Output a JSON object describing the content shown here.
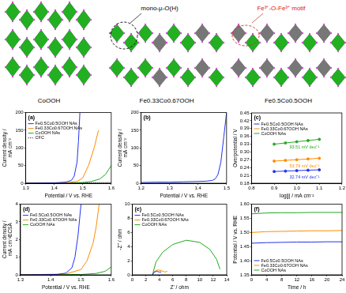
{
  "figure": {
    "structures": [
      {
        "label": "CoOOH"
      },
      {
        "label": "Fe0.33Co0.67OOH",
        "annotation": {
          "text": "mono-μ-O(H)",
          "color": "#000000"
        }
      },
      {
        "label": "Fe0.5Co0.5OOH",
        "annotation": {
          "text": "Fe³⁺-O-Fe³⁺ motif",
          "color": "#e02020"
        }
      }
    ]
  },
  "chart_data": [
    {
      "type": "line",
      "title": "(a)",
      "x_label": "Potential / V vs. RHE",
      "y_label": "Current density / mA cm⁻²",
      "xlim": [
        1.3,
        1.6
      ],
      "xticks": [
        1.3,
        1.4,
        1.5,
        1.6
      ],
      "ylim": [
        0,
        200
      ],
      "yticks": [
        0,
        50,
        100,
        150,
        200
      ],
      "grid": false,
      "legend": "upper left",
      "series": [
        {
          "name": "Fe0.5Co0.5OOH NAs",
          "color": "#2233ee",
          "x": [
            1.3,
            1.4,
            1.44,
            1.46,
            1.47,
            1.48,
            1.485,
            1.49
          ],
          "values": [
            0,
            1,
            3,
            8,
            20,
            60,
            120,
            200
          ]
        },
        {
          "name": "Fe0.33Co0.67OOH NAs",
          "color": "#ff8c00",
          "x": [
            1.3,
            1.4,
            1.45,
            1.48,
            1.5,
            1.52,
            1.54,
            1.555
          ],
          "values": [
            0,
            1,
            2,
            5,
            15,
            50,
            100,
            150
          ]
        },
        {
          "name": "CoOOH NAs",
          "color": "#22aa22",
          "x": [
            1.3,
            1.45,
            1.5,
            1.53,
            1.56,
            1.58,
            1.6
          ],
          "values": [
            0,
            1,
            2,
            5,
            12,
            25,
            50
          ]
        },
        {
          "name": "CFC",
          "color": "#000000",
          "line_style": "dotted",
          "x": [
            1.3,
            1.6
          ],
          "values": [
            0,
            2
          ]
        }
      ]
    },
    {
      "type": "line",
      "title": "(b)",
      "x_label": "Potential / V vs. RHE",
      "y_label": "Current density / mA cm⁻²",
      "xlim": [
        1.2,
        1.5
      ],
      "xticks": [
        1.2,
        1.3,
        1.4,
        1.5
      ],
      "ylim": [
        0,
        200
      ],
      "yticks": [
        0,
        50,
        100,
        150,
        200
      ],
      "grid": false,
      "series": [
        {
          "color": "#2233ee",
          "x": [
            1.2,
            1.25,
            1.3,
            1.35,
            1.4,
            1.43,
            1.45,
            1.46,
            1.47,
            1.48,
            1.49,
            1.5
          ],
          "values": [
            2,
            3,
            3,
            4,
            5,
            6,
            8,
            12,
            25,
            60,
            130,
            200
          ]
        }
      ]
    },
    {
      "type": "line",
      "title": "(c)",
      "x_label": "log|j| / mA cm⁻²",
      "y_label": "Overpotential / V",
      "xlim": [
        0.8,
        1.2
      ],
      "xticks": [
        0.8,
        0.9,
        {
          "value": 1.0,
          "label": "1.0"
        },
        1.1,
        1.2
      ],
      "ylim": [
        0.18,
        0.45
      ],
      "yticks": [
        0.18,
        0.21,
        0.24,
        0.27,
        {
          "value": 0.3,
          "label": "0.30"
        },
        0.33,
        0.36,
        0.39,
        0.42,
        0.45
      ],
      "grid": false,
      "legend": "upper left",
      "series": [
        {
          "name": "Fe0.5Co0.5OOH NAs",
          "color": "#2233ee",
          "marker": "circle",
          "x": [
            0.9,
            0.95,
            1.0,
            1.05,
            1.1
          ],
          "values": [
            0.225,
            0.2266,
            0.2283,
            0.2299,
            0.2315
          ]
        },
        {
          "name": "Fe0.33Co0.67OOH NAs",
          "color": "#ff8c00",
          "marker": "circle",
          "x": [
            0.9,
            0.95,
            1.0,
            1.05,
            1.1
          ],
          "values": [
            0.265,
            0.2677,
            0.2704,
            0.2731,
            0.2758
          ]
        },
        {
          "name": "CoOOH NAs",
          "color": "#22aa22",
          "marker": "circle",
          "x": [
            0.9,
            0.95,
            1.0,
            1.05,
            1.1
          ],
          "values": [
            0.33,
            0.3347,
            0.3394,
            0.344,
            0.3487
          ]
        }
      ],
      "annotations": [
        {
          "text": "93.51 mV dec⁻¹",
          "series": "CoOOH NAs"
        },
        {
          "text": "53.79 mV dec⁻¹",
          "series": "Fe0.33Co0.67OOH NAs"
        },
        {
          "text": "32.74 mV dec⁻¹",
          "series": "Fe0.5Co0.5OOH NAs"
        }
      ]
    },
    {
      "type": "line",
      "title": "(d)",
      "x_label": "Potential / V vs. RHE",
      "y_label": "Current density / mA cm⁻²ECSA",
      "xlim": [
        1.3,
        1.6
      ],
      "xticks": [
        1.3,
        1.4,
        1.5,
        1.6
      ],
      "ylim": [
        0,
        4
      ],
      "yticks": [
        0,
        1,
        2,
        3,
        4
      ],
      "grid": false,
      "legend": "upper left",
      "series": [
        {
          "name": "Fe0.5Co0.5OOH NAs",
          "color": "#2233ee",
          "x": [
            1.3,
            1.42,
            1.45,
            1.47,
            1.48,
            1.49,
            1.5
          ],
          "values": [
            0,
            0.02,
            0.1,
            0.4,
            1,
            2.2,
            4
          ]
        },
        {
          "name": "Fe0.33Co0.67OOH NAs",
          "color": "#ff8c00",
          "x": [
            1.3,
            1.45,
            1.5,
            1.52,
            1.54,
            1.55,
            1.56
          ],
          "values": [
            0,
            0.05,
            0.3,
            0.8,
            1.8,
            2.7,
            4
          ]
        },
        {
          "name": "CoOOH NAs",
          "color": "#22aa22",
          "x": [
            1.3,
            1.5,
            1.55,
            1.58,
            1.6
          ],
          "values": [
            0,
            0.02,
            0.08,
            0.2,
            0.45
          ]
        }
      ]
    },
    {
      "type": "line",
      "title": "(e)",
      "x_label": "Z' / ohm",
      "y_label": "-Z'' / ohm",
      "xlim": [
        0,
        14
      ],
      "xticks": [
        0,
        2,
        4,
        6,
        8,
        10,
        12,
        14
      ],
      "ylim": [
        0,
        10
      ],
      "yticks": [
        0,
        2,
        4,
        6,
        8,
        10
      ],
      "grid": false,
      "legend": "upper left",
      "series": [
        {
          "name": "Fe0.5Co0.5OOH NAs",
          "color": "#2233ee",
          "x": [
            3,
            3.2,
            3.6,
            4.0,
            4.3
          ],
          "values": [
            0,
            0.35,
            0.5,
            0.4,
            0.4
          ]
        },
        {
          "name": "Fe0.33Co0.67OOH NAs",
          "color": "#ff8c00",
          "x": [
            3,
            3.3,
            3.8,
            4.3,
            4.8,
            5.2
          ],
          "values": [
            0,
            0.5,
            0.7,
            0.6,
            0.4,
            0.5
          ]
        },
        {
          "name": "CoOOH NAs",
          "color": "#22aa22",
          "x": [
            3,
            3.5,
            4.5,
            6,
            8,
            10,
            11.5,
            12.5,
            13
          ],
          "values": [
            0,
            1.8,
            3.2,
            4.3,
            4.9,
            4.6,
            3.6,
            2.2,
            0.8
          ]
        }
      ]
    },
    {
      "type": "line",
      "title": "(f)",
      "x_label": "Time / h",
      "y_label": "Potential / V vs. RHE",
      "xlim": [
        0,
        24
      ],
      "xticks": [
        0,
        4,
        8,
        12,
        16,
        20,
        24
      ],
      "ylim": [
        1.35,
        1.6
      ],
      "yticks": [
        1.35,
        {
          "value": 1.4,
          "label": "1.40"
        },
        1.45,
        {
          "value": 1.5,
          "label": "1.50"
        },
        1.55,
        {
          "value": 1.6,
          "label": "1.60"
        }
      ],
      "grid": false,
      "legend": "lower left",
      "series": [
        {
          "name": "Fe0.5Co0.5OOH NAs",
          "color": "#2233ee",
          "x": [
            0,
            4,
            8,
            12,
            16,
            20,
            24
          ],
          "values": [
            1.462,
            1.464,
            1.465,
            1.466,
            1.466,
            1.467,
            1.467
          ]
        },
        {
          "name": "Fe0.33Co0.67OOH NAs",
          "color": "#ff8c00",
          "x": [
            0,
            4,
            8,
            12,
            16,
            20,
            24
          ],
          "values": [
            1.5,
            1.503,
            1.504,
            1.505,
            1.506,
            1.506,
            1.507
          ]
        },
        {
          "name": "CoOOH NAs",
          "color": "#22aa22",
          "x": [
            0,
            4,
            8,
            12,
            16,
            20,
            24
          ],
          "values": [
            1.566,
            1.569,
            1.57,
            1.57,
            1.571,
            1.571,
            1.571
          ]
        }
      ]
    }
  ]
}
